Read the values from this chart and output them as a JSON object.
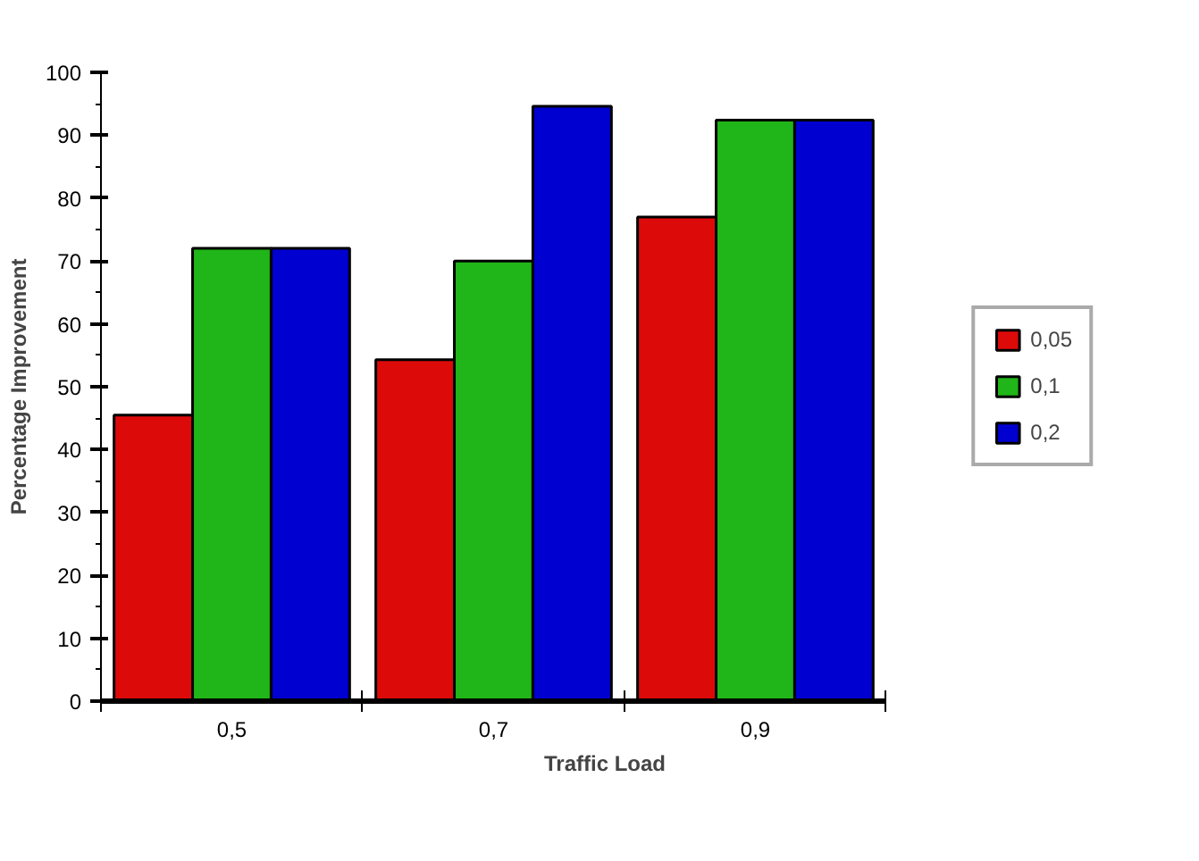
{
  "chart_data": {
    "type": "bar",
    "xlabel": "Traffic Load",
    "ylabel": "Percentage Improvement",
    "categories": [
      "0,5",
      "0,7",
      "0,9"
    ],
    "series": [
      {
        "name": "0,05",
        "color": "#dd0a0a",
        "values": [
          45.5,
          54.3,
          77
        ]
      },
      {
        "name": "0,1",
        "color": "#20b518",
        "values": [
          72,
          70,
          92.4
        ]
      },
      {
        "name": "0,2",
        "color": "#0000d0",
        "values": [
          72,
          94.6,
          92.4
        ]
      }
    ],
    "ylim": [
      0,
      100
    ],
    "yticks": [
      0,
      10,
      20,
      30,
      40,
      50,
      60,
      70,
      80,
      90,
      100
    ],
    "grid": false,
    "legend": "right"
  }
}
